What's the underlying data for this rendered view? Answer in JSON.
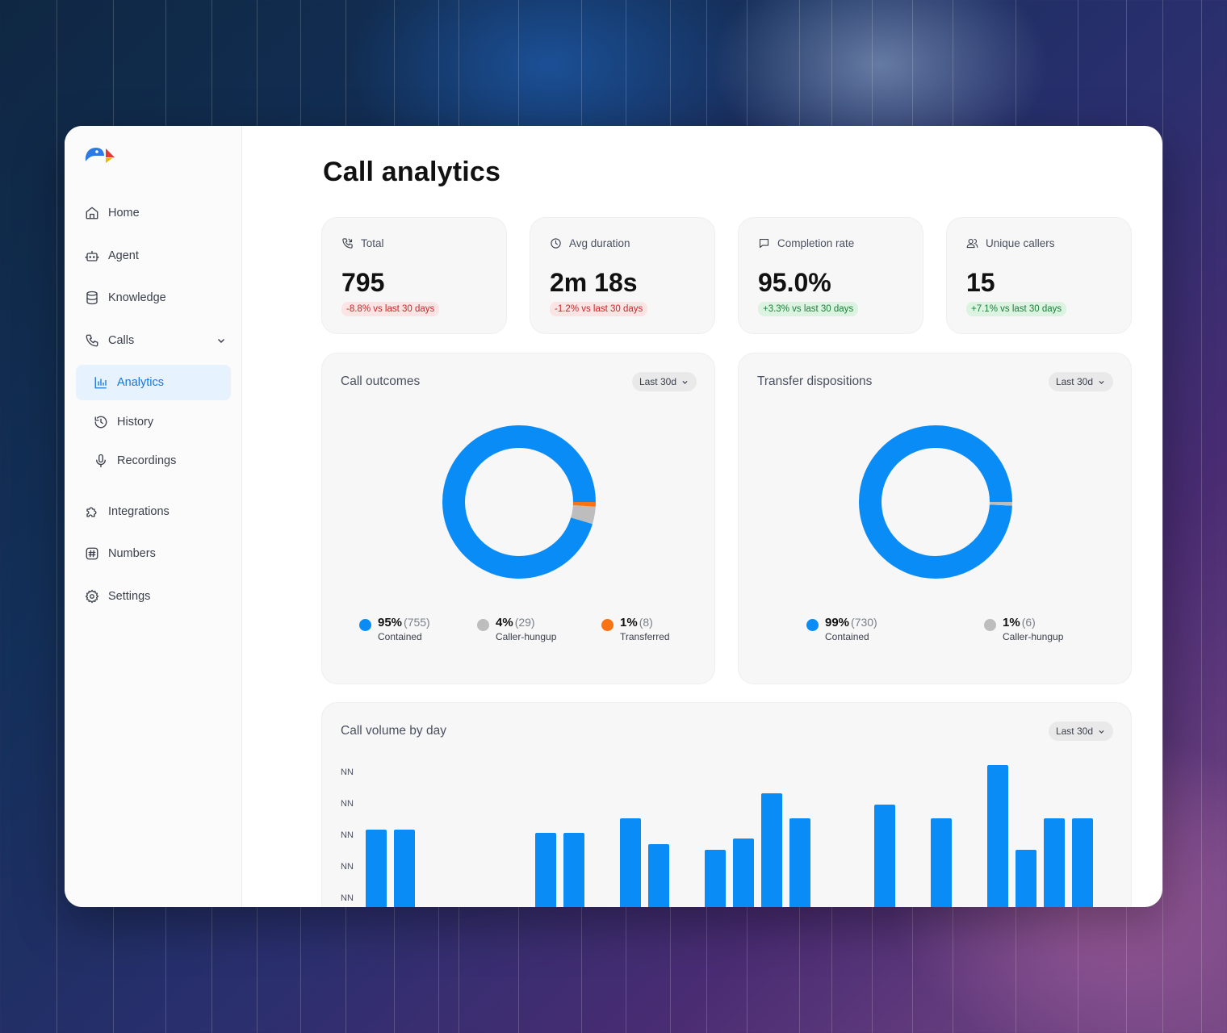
{
  "app": {
    "title": "Call analytics",
    "brand_colors": {
      "blue": "#2c7be5",
      "red": "#e53935",
      "yellow": "#f6b400"
    }
  },
  "sidebar": {
    "items": [
      {
        "label": "Home",
        "icon": "home-icon"
      },
      {
        "label": "Agent",
        "icon": "robot-icon"
      },
      {
        "label": "Knowledge",
        "icon": "database-icon"
      },
      {
        "label": "Calls",
        "icon": "phone-icon",
        "expanded": true
      },
      {
        "label": "Analytics",
        "icon": "bar-chart-icon",
        "active": true
      },
      {
        "label": "History",
        "icon": "history-icon"
      },
      {
        "label": "Recordings",
        "icon": "microphone-icon"
      },
      {
        "label": "Integrations",
        "icon": "puzzle-icon"
      },
      {
        "label": "Numbers",
        "icon": "hash-icon"
      },
      {
        "label": "Settings",
        "icon": "gear-icon"
      }
    ]
  },
  "stats": [
    {
      "label": "Total",
      "icon": "phone-arrows-icon",
      "value": "795",
      "change": "-8.8% vs last 30 days",
      "trend": "negative"
    },
    {
      "label": "Avg duration",
      "icon": "clock-icon",
      "value": "2m 18s",
      "change": "-1.2% vs last 30 days",
      "trend": "negative"
    },
    {
      "label": "Completion rate",
      "icon": "chat-icon",
      "value": "95.0%",
      "change": "+3.3% vs last 30 days",
      "trend": "positive"
    },
    {
      "label": "Unique callers",
      "icon": "users-icon",
      "value": "15",
      "change": "+7.1% vs last 30 days",
      "trend": "positive"
    }
  ],
  "chart_data": [
    {
      "type": "pie",
      "title": "Call outcomes",
      "range_label": "Last 30d",
      "slices": [
        {
          "pct_label": "95%",
          "count_label": "(755)",
          "name": "Contained",
          "value": 755,
          "color": "#0a8cf6"
        },
        {
          "pct_label": "4%",
          "count_label": "(29)",
          "name": "Caller-hungup",
          "value": 29,
          "color": "#bdbdbd"
        },
        {
          "pct_label": "1%",
          "count_label": "(8)",
          "name": "Transferred",
          "value": 8,
          "color": "#f97316"
        }
      ]
    },
    {
      "type": "pie",
      "title": "Transfer dispositions",
      "range_label": "Last 30d",
      "slices": [
        {
          "pct_label": "99%",
          "count_label": "(730)",
          "name": "Contained",
          "value": 730,
          "color": "#0a8cf6"
        },
        {
          "pct_label": "1%",
          "count_label": "(6)",
          "name": "Caller-hungup",
          "value": 6,
          "color": "#bdbdbd"
        }
      ]
    },
    {
      "type": "bar",
      "title": "Call volume by day",
      "range_label": "Last 30d",
      "y_tick_labels": [
        "NN",
        "NN",
        "NN",
        "NN",
        "NN"
      ],
      "values": [
        34,
        34,
        0,
        0,
        0,
        0,
        33,
        33,
        0,
        38,
        29,
        0,
        27,
        31,
        47,
        38,
        0,
        0,
        43,
        0,
        38,
        0,
        57,
        27,
        38,
        38
      ],
      "ylim_top": 60,
      "color": "#0a8cf6"
    }
  ]
}
